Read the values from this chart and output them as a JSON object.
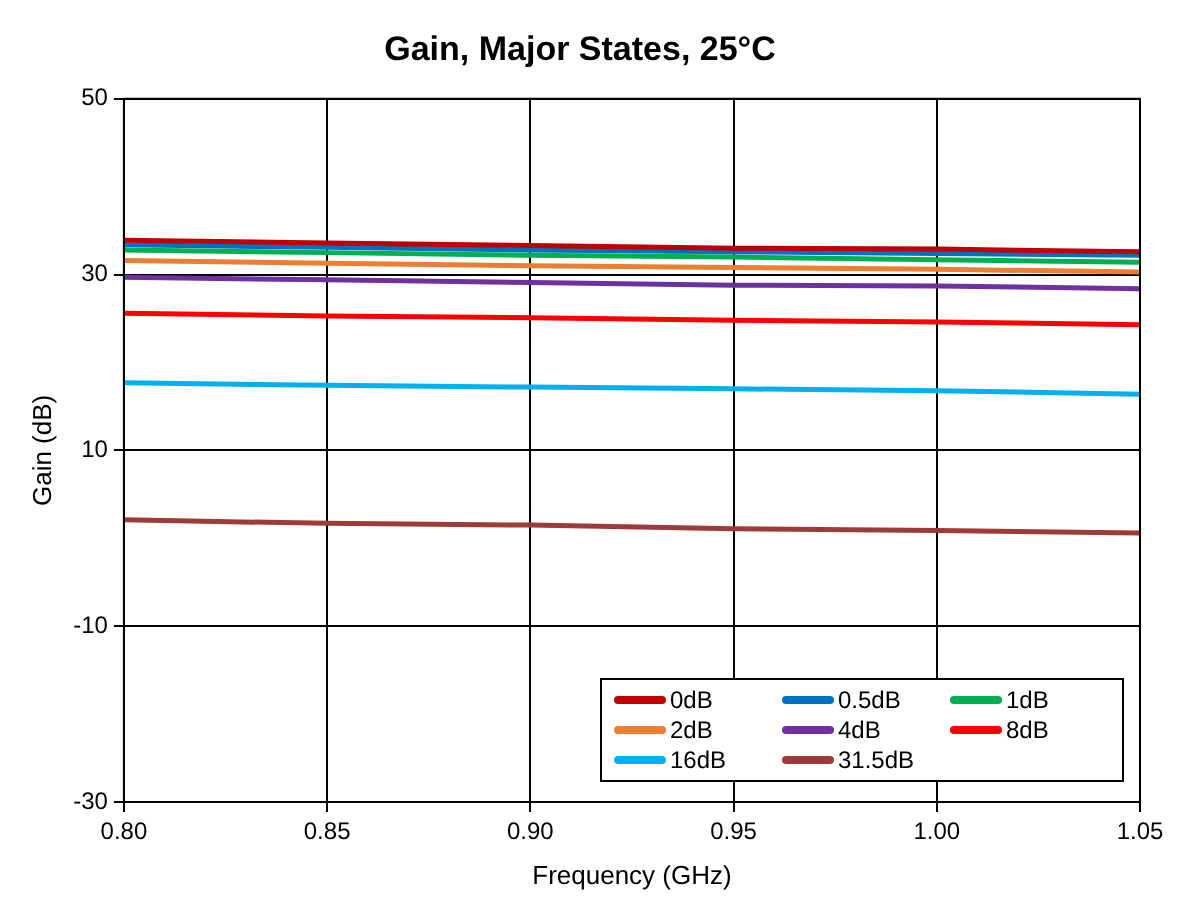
{
  "chart_data": {
    "type": "line",
    "title": "Gain, Major States, 25°C",
    "xlabel": "Frequency (GHz)",
    "ylabel": "Gain (dB)",
    "x": [
      0.8,
      0.85,
      0.9,
      0.95,
      1.0,
      1.05
    ],
    "series": [
      {
        "name": "0dB",
        "color": "#c00000",
        "values": [
          33.9,
          33.6,
          33.3,
          33.0,
          32.9,
          32.6
        ]
      },
      {
        "name": "0.5dB",
        "color": "#0070c0",
        "values": [
          33.4,
          33.1,
          32.8,
          32.6,
          32.4,
          32.2
        ]
      },
      {
        "name": "1dB",
        "color": "#00b050",
        "values": [
          32.8,
          32.5,
          32.2,
          32.0,
          31.7,
          31.4
        ]
      },
      {
        "name": "2dB",
        "color": "#ed7d31",
        "values": [
          31.6,
          31.3,
          31.0,
          30.8,
          30.6,
          30.3
        ]
      },
      {
        "name": "4dB",
        "color": "#7030a0",
        "values": [
          29.7,
          29.4,
          29.1,
          28.8,
          28.7,
          28.4
        ]
      },
      {
        "name": "8dB",
        "color": "#ff0000",
        "values": [
          25.6,
          25.3,
          25.1,
          24.8,
          24.6,
          24.3
        ]
      },
      {
        "name": "16dB",
        "color": "#00b0f0",
        "values": [
          17.7,
          17.4,
          17.2,
          17.0,
          16.8,
          16.4
        ]
      },
      {
        "name": "31.5dB",
        "color": "#9e3a38",
        "values": [
          2.1,
          1.7,
          1.5,
          1.1,
          0.9,
          0.6
        ]
      }
    ],
    "xlim": [
      0.8,
      1.05
    ],
    "xticks": [
      {
        "value": 0.8,
        "label": "0.80"
      },
      {
        "value": 0.85,
        "label": "0.85"
      },
      {
        "value": 0.9,
        "label": "0.90"
      },
      {
        "value": 0.95,
        "label": "0.95"
      },
      {
        "value": 1.0,
        "label": "1.00"
      },
      {
        "value": 1.05,
        "label": "1.05"
      }
    ],
    "ylim": [
      -30,
      50
    ],
    "yticks": [
      -30,
      -10,
      10,
      30,
      50
    ],
    "grid": true,
    "legend": "bottom right",
    "marker": "none",
    "line_style": "solid"
  }
}
